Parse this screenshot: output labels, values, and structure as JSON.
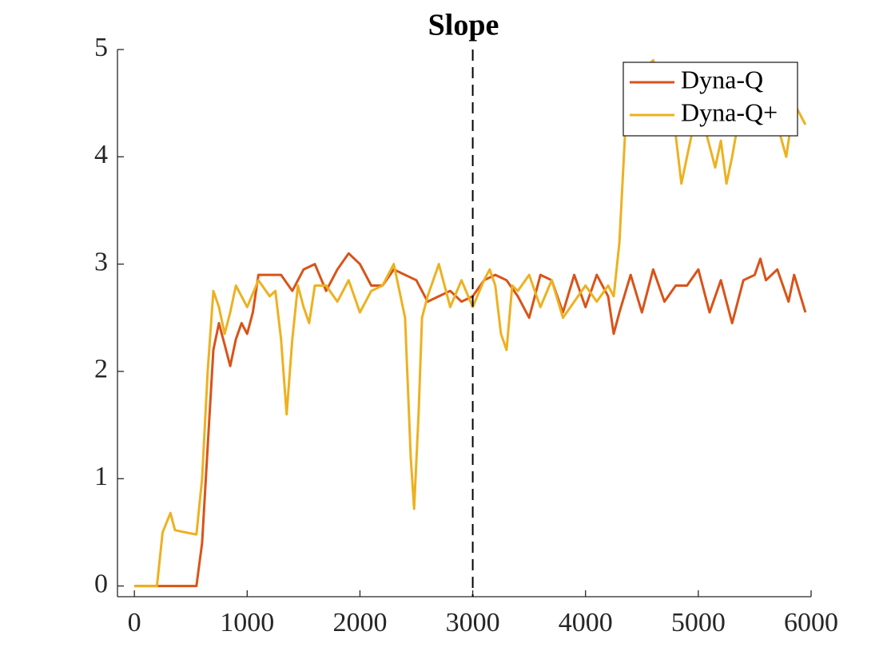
{
  "chart_data": {
    "type": "line",
    "title": "Slope",
    "xlim": [
      -150,
      6000
    ],
    "ylim": [
      -0.1,
      5
    ],
    "xticks": [
      0,
      1000,
      2000,
      3000,
      4000,
      5000,
      6000
    ],
    "yticks": [
      0,
      1,
      2,
      3,
      4,
      5
    ],
    "vline": 3000,
    "legend": "top-right",
    "series": [
      {
        "name": "Dyna-Q",
        "color": "#d95319",
        "x": [
          0,
          550,
          600,
          650,
          700,
          750,
          800,
          850,
          900,
          950,
          1000,
          1050,
          1100,
          1200,
          1300,
          1400,
          1500,
          1600,
          1700,
          1800,
          1900,
          2000,
          2100,
          2200,
          2300,
          2400,
          2500,
          2600,
          2700,
          2800,
          2900,
          3000,
          3100,
          3200,
          3300,
          3400,
          3500,
          3600,
          3700,
          3800,
          3900,
          4000,
          4100,
          4200,
          4250,
          4300,
          4400,
          4500,
          4600,
          4700,
          4800,
          4900,
          5000,
          5100,
          5200,
          5300,
          5400,
          5500,
          5550,
          5600,
          5700,
          5800,
          5850,
          5950
        ],
        "values": [
          0,
          0,
          0.4,
          1.3,
          2.2,
          2.45,
          2.25,
          2.05,
          2.3,
          2.45,
          2.35,
          2.55,
          2.9,
          2.9,
          2.9,
          2.75,
          2.95,
          3.0,
          2.75,
          2.95,
          3.1,
          3.0,
          2.8,
          2.8,
          2.95,
          2.9,
          2.85,
          2.65,
          2.7,
          2.75,
          2.65,
          2.7,
          2.85,
          2.9,
          2.85,
          2.7,
          2.5,
          2.9,
          2.85,
          2.55,
          2.9,
          2.6,
          2.9,
          2.7,
          2.35,
          2.55,
          2.9,
          2.55,
          2.95,
          2.65,
          2.8,
          2.8,
          2.95,
          2.55,
          2.85,
          2.45,
          2.85,
          2.9,
          3.05,
          2.85,
          2.95,
          2.65,
          2.9,
          2.55
        ]
      },
      {
        "name": "Dyna-Q+",
        "color": "#edb120",
        "x": [
          0,
          200,
          250,
          320,
          360,
          450,
          550,
          600,
          650,
          700,
          750,
          800,
          850,
          900,
          950,
          1000,
          1100,
          1200,
          1250,
          1300,
          1350,
          1400,
          1450,
          1500,
          1550,
          1600,
          1700,
          1800,
          1900,
          2000,
          2100,
          2200,
          2300,
          2400,
          2450,
          2480,
          2520,
          2550,
          2600,
          2700,
          2800,
          2900,
          3000,
          3100,
          3150,
          3200,
          3250,
          3300,
          3350,
          3400,
          3500,
          3600,
          3700,
          3800,
          3900,
          4000,
          4100,
          4200,
          4250,
          4300,
          4350,
          4400,
          4500,
          4600,
          4700,
          4800,
          4850,
          4900,
          5000,
          5100,
          5150,
          5200,
          5250,
          5300,
          5400,
          5500,
          5600,
          5700,
          5780,
          5850,
          5950
        ],
        "values": [
          0,
          0,
          0.5,
          0.68,
          0.52,
          0.5,
          0.48,
          1.0,
          2.0,
          2.75,
          2.6,
          2.35,
          2.55,
          2.8,
          2.7,
          2.6,
          2.85,
          2.7,
          2.75,
          2.3,
          1.6,
          2.3,
          2.8,
          2.6,
          2.45,
          2.8,
          2.8,
          2.65,
          2.85,
          2.55,
          2.75,
          2.8,
          3.0,
          2.5,
          1.2,
          0.72,
          1.6,
          2.5,
          2.7,
          3.0,
          2.6,
          2.85,
          2.6,
          2.85,
          2.95,
          2.8,
          2.35,
          2.2,
          2.8,
          2.75,
          2.9,
          2.6,
          2.85,
          2.5,
          2.65,
          2.8,
          2.65,
          2.8,
          2.7,
          3.2,
          4.2,
          4.8,
          4.8,
          4.9,
          4.5,
          4.2,
          3.75,
          4.0,
          4.5,
          4.1,
          3.9,
          4.15,
          3.75,
          4.0,
          4.6,
          4.5,
          4.5,
          4.3,
          4.0,
          4.5,
          4.3
        ]
      }
    ]
  }
}
